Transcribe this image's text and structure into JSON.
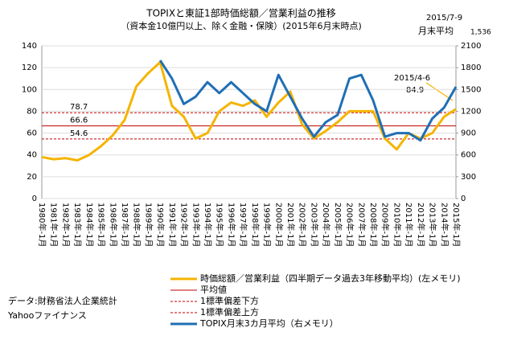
{
  "chart_data": {
    "type": "line",
    "title": "TOPIXと東証1部時価総額／営業利益の推移",
    "subtitle": "（資本金10億円以上、除く金融・保険）(2015年6月末時点)",
    "categories": [
      "1980年-1月",
      "1981年-1月",
      "1982年-1月",
      "1983年-1月",
      "1984年-1月",
      "1985年-1月",
      "1986年-1月",
      "1987年-1月",
      "1988年-1月",
      "1989年-1月",
      "1990年-1月",
      "1991年-1月",
      "1992年-1月",
      "1993年-1月",
      "1994年-1月",
      "1995年-1月",
      "1996年-1月",
      "1997年-1月",
      "1998年-1月",
      "1999年-1月",
      "2000年-1月",
      "2001年-1月",
      "2002年-1月",
      "2003年-1月",
      "2004年-1月",
      "2005年-1月",
      "2006年-1月",
      "2007年-1月",
      "2008年-1月",
      "2009年-1月",
      "2010年-1月",
      "2011年-1月",
      "2012年-1月",
      "2013年-1月",
      "2014年-1月",
      "2015年-1月"
    ],
    "series": [
      {
        "name": "時価総額／営業利益（四半期データ過去3年移動平均）(左メモリ)",
        "color": "#f5b400",
        "values": [
          38,
          36,
          37,
          35,
          40,
          48,
          58,
          72,
          103,
          115,
          125,
          85,
          75,
          55,
          60,
          80,
          88,
          85,
          90,
          75,
          88,
          98,
          68,
          55,
          62,
          70,
          80,
          80,
          80,
          55,
          45,
          60,
          55,
          60,
          75,
          82
        ]
      },
      {
        "name": "TOPIX月末3カ月平均（右メモリ）",
        "color": "#1f6fb5",
        "axis": "y2",
        "values": [
          null,
          null,
          null,
          null,
          null,
          null,
          null,
          null,
          null,
          null,
          1900,
          1650,
          1300,
          1400,
          1600,
          1450,
          1600,
          1450,
          1300,
          1200,
          1700,
          1400,
          1100,
          850,
          1050,
          1150,
          1650,
          1700,
          1350,
          850,
          900,
          900,
          800,
          1100,
          1250,
          1536
        ]
      }
    ],
    "reference_lines": [
      {
        "name": "平均値",
        "value": 66.6,
        "color": "#c00000",
        "dash": false
      },
      {
        "name": "1標準偏差下方",
        "value": 54.6,
        "color": "#c00000",
        "dash": true
      },
      {
        "name": "1標準偏差上方",
        "value": 78.7,
        "color": "#c00000",
        "dash": true
      }
    ],
    "ylim": [
      0,
      140
    ],
    "yticks": [
      0,
      20,
      40,
      60,
      80,
      100,
      120,
      140
    ],
    "y2lim": [
      0,
      2100
    ],
    "y2ticks": [
      0,
      300,
      600,
      900,
      1200,
      1500,
      1800,
      2100
    ],
    "annotations": {
      "top_date": "2015/7-9",
      "top_label": "月末平均",
      "top_value": "1,536",
      "point_date": "2015/4-6",
      "point_value": "84.9"
    },
    "sources": [
      "データ:財務省法人企業統計",
      "Yahooファイナンス"
    ]
  }
}
